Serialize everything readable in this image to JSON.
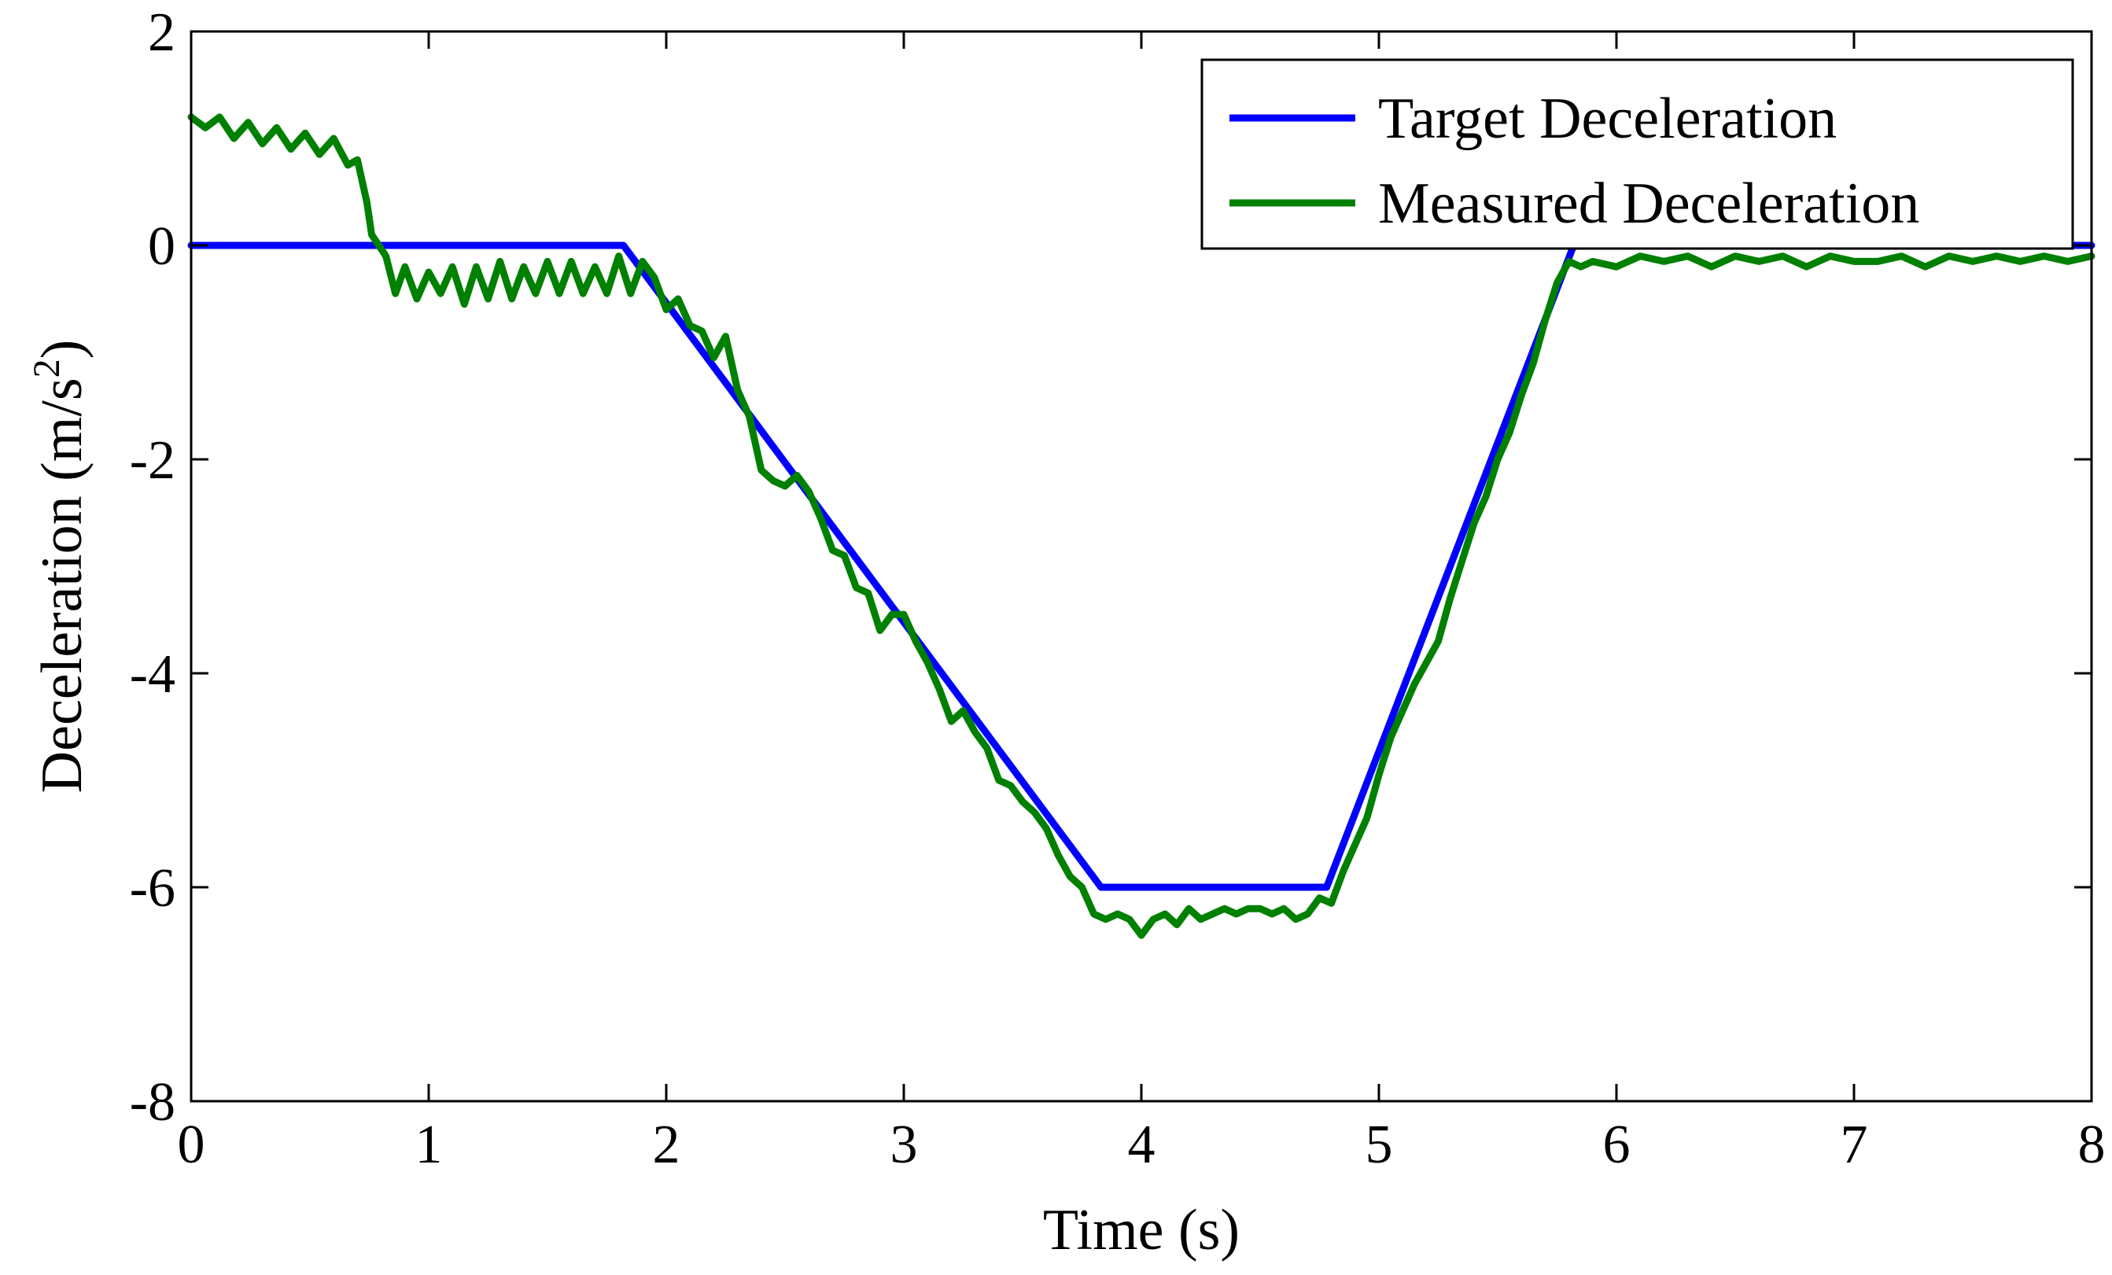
{
  "chart_data": {
    "type": "line",
    "title": "",
    "xlabel": "Time (s)",
    "ylabel_main": "Deceleration (m/s",
    "ylabel_sup": "2",
    "ylabel_close": ")",
    "xlim": [
      0,
      8
    ],
    "ylim": [
      -8,
      2
    ],
    "xticks": [
      0,
      1,
      2,
      3,
      4,
      5,
      6,
      7,
      8
    ],
    "yticks": [
      2,
      0,
      -2,
      -4,
      -6,
      -8
    ],
    "grid": false,
    "legend_position": "top-right",
    "series": [
      {
        "name": "Target Deceleration",
        "color": "#0000ff",
        "x": [
          0,
          1.82,
          3.83,
          4.78,
          5.82,
          8
        ],
        "y": [
          0,
          0,
          -6.0,
          -6.0,
          0,
          0
        ]
      },
      {
        "name": "Measured Deceleration",
        "color": "#008000",
        "x": [
          0,
          0.06,
          0.12,
          0.18,
          0.24,
          0.3,
          0.36,
          0.42,
          0.48,
          0.54,
          0.6,
          0.66,
          0.7,
          0.74,
          0.76,
          0.79,
          0.82,
          0.86,
          0.9,
          0.95,
          1.0,
          1.05,
          1.1,
          1.15,
          1.2,
          1.25,
          1.3,
          1.35,
          1.4,
          1.45,
          1.5,
          1.55,
          1.6,
          1.65,
          1.7,
          1.75,
          1.8,
          1.85,
          1.9,
          1.95,
          2.0,
          2.05,
          2.1,
          2.15,
          2.2,
          2.25,
          2.3,
          2.35,
          2.4,
          2.45,
          2.5,
          2.55,
          2.6,
          2.65,
          2.7,
          2.75,
          2.8,
          2.85,
          2.9,
          2.95,
          3.0,
          3.05,
          3.1,
          3.15,
          3.2,
          3.25,
          3.3,
          3.35,
          3.4,
          3.45,
          3.5,
          3.55,
          3.6,
          3.65,
          3.7,
          3.75,
          3.8,
          3.85,
          3.9,
          3.95,
          4.0,
          4.05,
          4.1,
          4.15,
          4.2,
          4.25,
          4.3,
          4.35,
          4.4,
          4.45,
          4.5,
          4.55,
          4.6,
          4.65,
          4.7,
          4.75,
          4.8,
          4.85,
          4.9,
          4.95,
          5.0,
          5.05,
          5.1,
          5.15,
          5.2,
          5.25,
          5.3,
          5.35,
          5.4,
          5.45,
          5.5,
          5.55,
          5.6,
          5.65,
          5.7,
          5.75,
          5.8,
          5.85,
          5.9,
          6.0,
          6.1,
          6.2,
          6.3,
          6.4,
          6.5,
          6.6,
          6.7,
          6.8,
          6.9,
          7.0,
          7.1,
          7.2,
          7.3,
          7.4,
          7.5,
          7.6,
          7.7,
          7.8,
          7.9,
          8.0
        ],
        "y": [
          1.2,
          1.1,
          1.2,
          1.0,
          1.15,
          0.95,
          1.1,
          0.9,
          1.05,
          0.85,
          1.0,
          0.75,
          0.8,
          0.4,
          0.1,
          0.0,
          -0.1,
          -0.45,
          -0.2,
          -0.5,
          -0.25,
          -0.45,
          -0.2,
          -0.55,
          -0.2,
          -0.5,
          -0.15,
          -0.5,
          -0.2,
          -0.45,
          -0.15,
          -0.45,
          -0.15,
          -0.45,
          -0.2,
          -0.45,
          -0.1,
          -0.45,
          -0.15,
          -0.3,
          -0.6,
          -0.5,
          -0.75,
          -0.8,
          -1.05,
          -0.85,
          -1.35,
          -1.6,
          -2.1,
          -2.2,
          -2.25,
          -2.15,
          -2.3,
          -2.55,
          -2.85,
          -2.9,
          -3.2,
          -3.25,
          -3.6,
          -3.45,
          -3.45,
          -3.7,
          -3.9,
          -4.15,
          -4.45,
          -4.35,
          -4.55,
          -4.7,
          -5.0,
          -5.05,
          -5.2,
          -5.3,
          -5.45,
          -5.7,
          -5.9,
          -6.0,
          -6.25,
          -6.3,
          -6.25,
          -6.3,
          -6.45,
          -6.3,
          -6.25,
          -6.35,
          -6.2,
          -6.3,
          -6.25,
          -6.2,
          -6.25,
          -6.2,
          -6.2,
          -6.25,
          -6.2,
          -6.3,
          -6.25,
          -6.1,
          -6.15,
          -5.85,
          -5.6,
          -5.35,
          -4.95,
          -4.6,
          -4.35,
          -4.1,
          -3.9,
          -3.7,
          -3.3,
          -2.95,
          -2.6,
          -2.35,
          -2.0,
          -1.75,
          -1.4,
          -1.1,
          -0.7,
          -0.35,
          -0.15,
          -0.2,
          -0.15,
          -0.2,
          -0.1,
          -0.15,
          -0.1,
          -0.2,
          -0.1,
          -0.15,
          -0.1,
          -0.2,
          -0.1,
          -0.15,
          -0.15,
          -0.1,
          -0.2,
          -0.1,
          -0.15,
          -0.1,
          -0.15,
          -0.1,
          -0.15,
          -0.1
        ]
      }
    ]
  }
}
